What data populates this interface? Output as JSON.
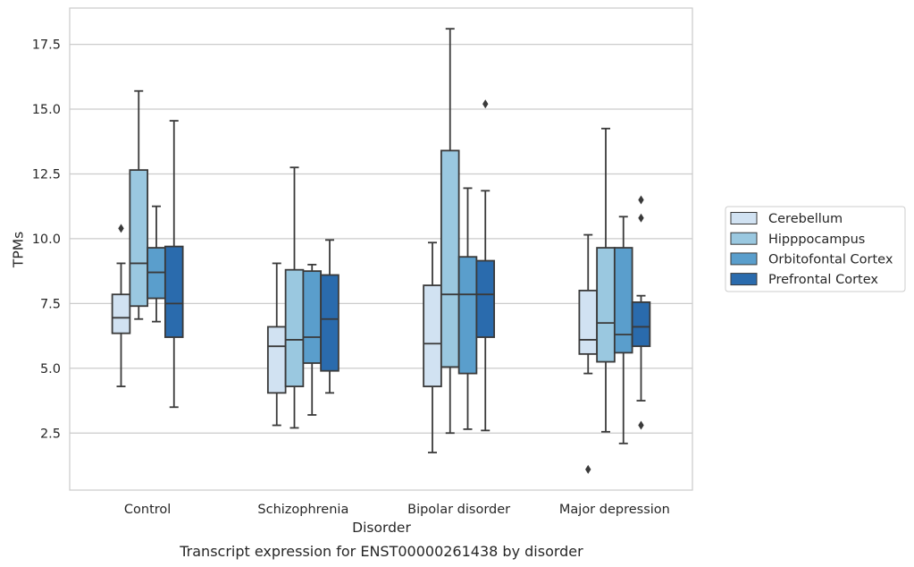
{
  "chart_data": {
    "type": "box",
    "caption": "Transcript expression for ENST00000261438 by disorder",
    "xlabel": "Disorder",
    "ylabel": "TPMs",
    "ylim": [
      0.3,
      18.9
    ],
    "yticks": [
      "2.5",
      "5.0",
      "7.5",
      "10.0",
      "12.5",
      "15.0",
      "17.5"
    ],
    "categories": [
      "Control",
      "Schizophrenia",
      "Bipolar disorder",
      "Major depression"
    ],
    "grid": "horizontal",
    "legend_position": "right",
    "series": [
      {
        "name": "Cerebellum",
        "color": "#d1e2f2",
        "boxes": [
          {
            "whisker_low": 4.3,
            "q1": 6.35,
            "median": 6.95,
            "q3": 7.85,
            "whisker_high": 9.05,
            "outliers": [
              10.4
            ]
          },
          {
            "whisker_low": 2.8,
            "q1": 4.05,
            "median": 5.85,
            "q3": 6.6,
            "whisker_high": 9.05,
            "outliers": []
          },
          {
            "whisker_low": 1.75,
            "q1": 4.3,
            "median": 5.95,
            "q3": 8.2,
            "whisker_high": 9.85,
            "outliers": []
          },
          {
            "whisker_low": 4.8,
            "q1": 5.55,
            "median": 6.1,
            "q3": 8.0,
            "whisker_high": 10.15,
            "outliers": [
              1.1
            ]
          }
        ]
      },
      {
        "name": "Hipppocampus",
        "color": "#9ac8e0",
        "boxes": [
          {
            "whisker_low": 6.9,
            "q1": 7.4,
            "median": 9.05,
            "q3": 12.65,
            "whisker_high": 15.7,
            "outliers": []
          },
          {
            "whisker_low": 2.7,
            "q1": 4.3,
            "median": 6.1,
            "q3": 8.8,
            "whisker_high": 12.75,
            "outliers": []
          },
          {
            "whisker_low": 2.5,
            "q1": 5.05,
            "median": 7.85,
            "q3": 13.4,
            "whisker_high": 18.1,
            "outliers": []
          },
          {
            "whisker_low": 2.55,
            "q1": 5.25,
            "median": 6.75,
            "q3": 9.65,
            "whisker_high": 14.25,
            "outliers": []
          }
        ]
      },
      {
        "name": "Orbitofontal Cortex",
        "color": "#5a9ecc",
        "boxes": [
          {
            "whisker_low": 6.8,
            "q1": 7.7,
            "median": 8.7,
            "q3": 9.65,
            "whisker_high": 11.25,
            "outliers": []
          },
          {
            "whisker_low": 3.2,
            "q1": 5.2,
            "median": 6.2,
            "q3": 8.75,
            "whisker_high": 9.0,
            "outliers": []
          },
          {
            "whisker_low": 2.65,
            "q1": 4.8,
            "median": 7.85,
            "q3": 9.3,
            "whisker_high": 11.95,
            "outliers": []
          },
          {
            "whisker_low": 2.1,
            "q1": 5.6,
            "median": 6.3,
            "q3": 9.65,
            "whisker_high": 10.85,
            "outliers": []
          }
        ]
      },
      {
        "name": "Prefrontal Cortex",
        "color": "#2a6bad",
        "boxes": [
          {
            "whisker_low": 3.5,
            "q1": 6.2,
            "median": 7.5,
            "q3": 9.7,
            "whisker_high": 14.55,
            "outliers": []
          },
          {
            "whisker_low": 4.05,
            "q1": 4.9,
            "median": 6.9,
            "q3": 8.6,
            "whisker_high": 9.95,
            "outliers": []
          },
          {
            "whisker_low": 2.6,
            "q1": 6.2,
            "median": 7.85,
            "q3": 9.15,
            "whisker_high": 11.85,
            "outliers": [
              15.2
            ]
          },
          {
            "whisker_low": 3.75,
            "q1": 5.85,
            "median": 6.6,
            "q3": 7.55,
            "whisker_high": 7.8,
            "outliers": [
              2.8,
              10.8,
              11.5
            ]
          }
        ]
      }
    ]
  }
}
